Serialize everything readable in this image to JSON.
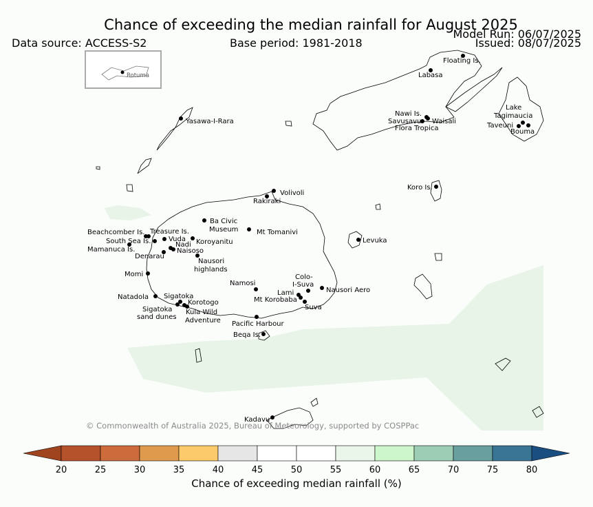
{
  "header": {
    "title": "Chance of exceeding the median rainfall for August 2025",
    "data_source": "Data source: ACCESS-S2",
    "base_period": "Base period: 1981-2018",
    "model_run": "Model Run: 06/07/2025",
    "issued": "Issued: 08/07/2025"
  },
  "inset": {
    "label": "Rotuma"
  },
  "places": [
    {
      "name": "Floating Is."
    },
    {
      "name": "Labasa"
    },
    {
      "name": "Yasawa-I-Rara"
    },
    {
      "name": "Nawi Is."
    },
    {
      "name": "Savusavu"
    },
    {
      "name": "Waisali"
    },
    {
      "name": "Flora Tropica"
    },
    {
      "name": "Lake"
    },
    {
      "name": "Tagimaucia"
    },
    {
      "name": "Taveuni"
    },
    {
      "name": "Bouma"
    },
    {
      "name": "Volivoli"
    },
    {
      "name": "Rakiraki"
    },
    {
      "name": "Koro Is."
    },
    {
      "name": "Ba Civic"
    },
    {
      "name": "Museum"
    },
    {
      "name": "Mt Tomanivi"
    },
    {
      "name": "Beachcomber Is."
    },
    {
      "name": "Treasure Is."
    },
    {
      "name": "South Sea Is."
    },
    {
      "name": "Vuda"
    },
    {
      "name": "Koroyanitu"
    },
    {
      "name": "Nadi"
    },
    {
      "name": "Mamanuca Is."
    },
    {
      "name": "Naisoso"
    },
    {
      "name": "Denarau"
    },
    {
      "name": "Nausori"
    },
    {
      "name": "highlands"
    },
    {
      "name": "Levuka"
    },
    {
      "name": "Momi"
    },
    {
      "name": "Namosi"
    },
    {
      "name": "Colo-"
    },
    {
      "name": "I-Suva"
    },
    {
      "name": "Natadola"
    },
    {
      "name": "Sigatoka"
    },
    {
      "name": "Lami"
    },
    {
      "name": "Nausori Aero"
    },
    {
      "name": "Mt Korobaba"
    },
    {
      "name": "Korotogo"
    },
    {
      "name": "Sigatoka"
    },
    {
      "name": "sand dunes"
    },
    {
      "name": "Suva"
    },
    {
      "name": "Kula Wild"
    },
    {
      "name": "Adventure"
    },
    {
      "name": "Pacific Harbour"
    },
    {
      "name": "Beqa Is."
    },
    {
      "name": "Kadavu"
    }
  ],
  "copyright": "© Commonwealth of Australia 2025, Bureau of Meteorology, supported by COSPPac",
  "colorbar": {
    "ticks": [
      "20",
      "25",
      "30",
      "35",
      "40",
      "45",
      "50",
      "55",
      "60",
      "65",
      "70",
      "75",
      "80"
    ],
    "colors": [
      "#a0431f",
      "#b5522b",
      "#cc6b3b",
      "#e09a4e",
      "#fcca6a",
      "#e6e6e6",
      "#ffffff",
      "#ffffff",
      "#eaf6ea",
      "#cdf6cd",
      "#9dcdb5",
      "#6a9fa0",
      "#3b7595",
      "#1a4e80"
    ],
    "label": "Chance of exceeding median rainfall (%)"
  },
  "map_fill": {
    "land_outline": "#000000",
    "shade_55_60": "#e8f4e8"
  }
}
